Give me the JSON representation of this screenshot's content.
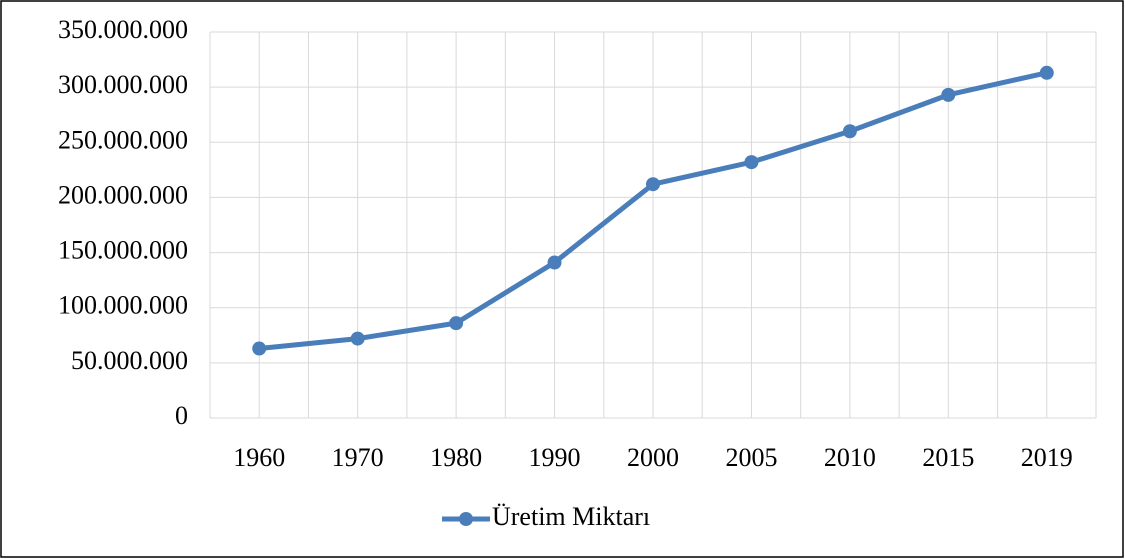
{
  "chart_data": {
    "type": "line",
    "categories": [
      "1960",
      "1970",
      "1980",
      "1990",
      "2000",
      "2005",
      "2010",
      "2015",
      "2019"
    ],
    "series": [
      {
        "name": "Üretim Miktarı",
        "color": "#4a7ebb",
        "values": [
          63000000,
          72000000,
          86000000,
          141000000,
          212000000,
          232000000,
          260000000,
          293000000,
          313000000
        ]
      }
    ],
    "ylim": [
      0,
      350000000
    ],
    "yticks": [
      0,
      {
        "value": 50000000,
        "label": "50.000.000"
      },
      {
        "value": 100000000,
        "label": "100.000.000"
      },
      {
        "value": 150000000,
        "label": "150.000.000"
      },
      {
        "value": 200000000,
        "label": "200.000.000"
      },
      {
        "value": 250000000,
        "label": "250.000.000"
      },
      {
        "value": 300000000,
        "label": "300.000.000"
      },
      {
        "value": 350000000,
        "label": "350.000.000"
      }
    ],
    "grid": true,
    "legend": "bottom"
  }
}
